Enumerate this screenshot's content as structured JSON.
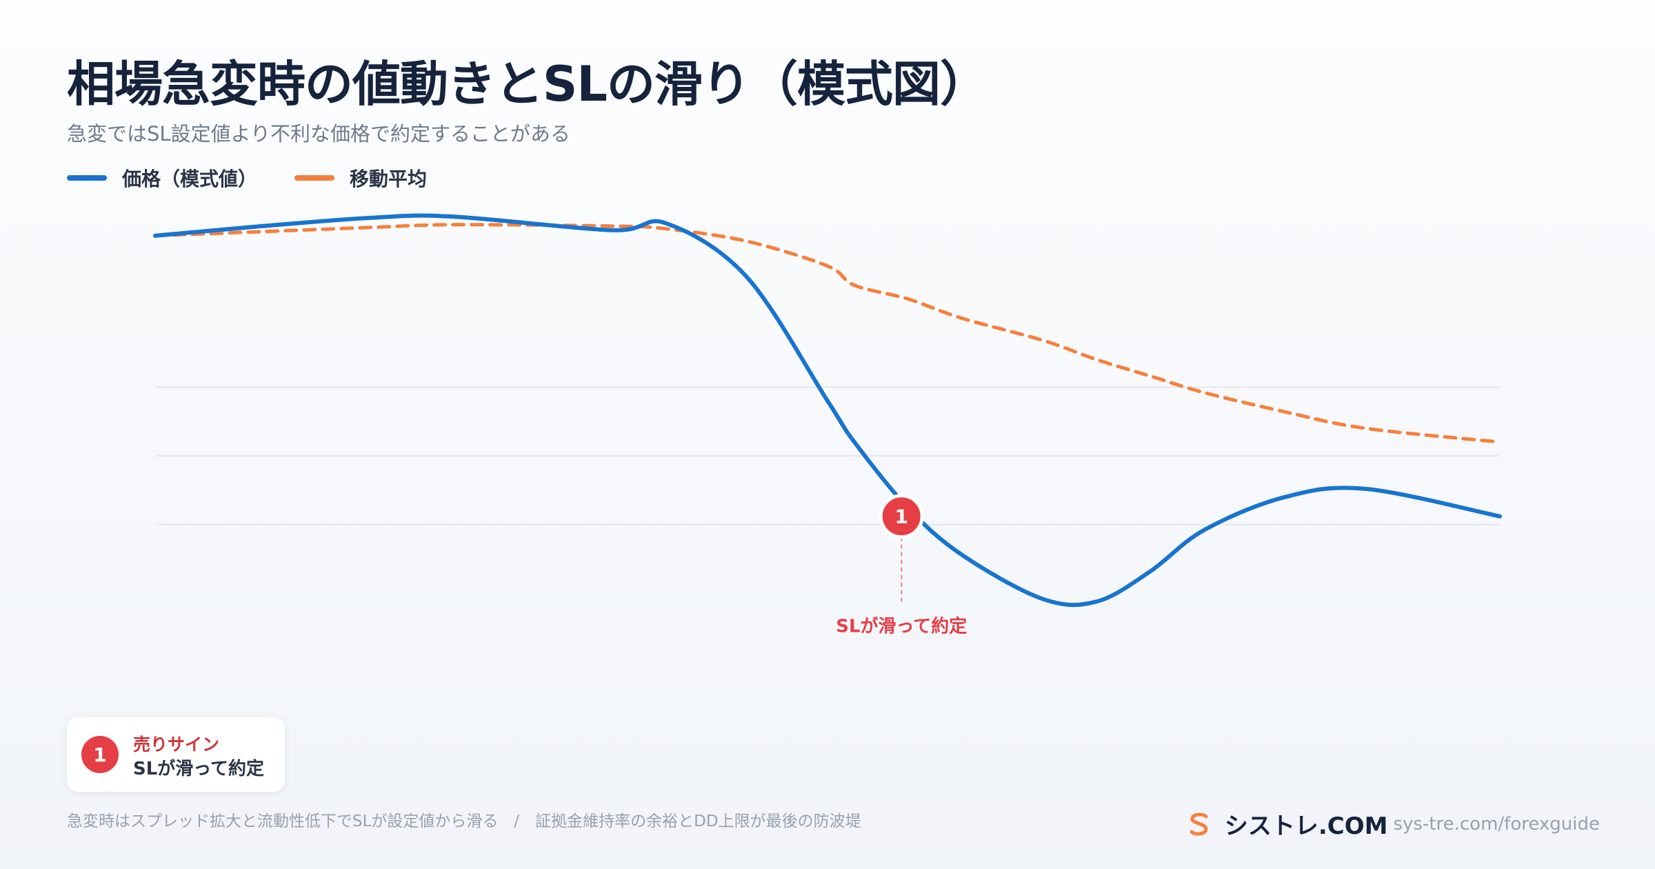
{
  "header": {
    "title": "相場急変時の値動きとSLの滑り（模式図）",
    "subtitle": "急変ではSL設定値より不利な価格で約定することがある"
  },
  "legend": [
    {
      "label": "価格（模式値）",
      "color": "#1874d0",
      "style": "solid"
    },
    {
      "label": "移動平均",
      "color": "#f5803c",
      "style": "dashed"
    }
  ],
  "chart_data": {
    "type": "line",
    "title": "相場急変時の値動きとSLの滑り（模式図）",
    "subtitle": "急変ではSL設定値より不利な価格で約定することがある",
    "xlabel": "",
    "ylabel": "",
    "grid": true,
    "x": [
      0,
      8,
      16,
      22,
      34,
      38,
      44,
      50,
      52,
      56,
      60,
      66,
      70,
      74,
      78,
      84,
      90,
      100
    ],
    "ylim": [
      70,
      107
    ],
    "series": [
      {
        "name": "価格（模式値）",
        "color": "#1874d0",
        "style": "solid",
        "values": [
          103,
          103.7,
          104.3,
          104.4,
          103.4,
          103.9,
          100.0,
          91.0,
          88.0,
          83.2,
          79.8,
          76.6,
          76.4,
          78.6,
          81.6,
          84.0,
          84.6,
          82.6
        ]
      },
      {
        "name": "移動平均",
        "color": "#f5803c",
        "style": "dashed",
        "values": [
          103,
          103.3,
          103.6,
          103.8,
          103.7,
          103.5,
          102.6,
          100.8,
          99.4,
          98.4,
          97.0,
          95.4,
          94.0,
          92.8,
          91.6,
          90.2,
          89.0,
          88.0
        ]
      }
    ],
    "annotations": [
      {
        "id": "1",
        "x": 55.5,
        "y": 82.6,
        "label": "SLが滑って約定",
        "color": "#e53e45"
      }
    ],
    "grid_values": [
      92,
      87,
      82
    ]
  },
  "note": {
    "badge": "1",
    "title": "売りサイン",
    "desc": "SLが滑って約定"
  },
  "footer": {
    "text": "急変時はスプレッド拡大と流動性低下でSLが設定値から滑る　/　証拠金維持率の余裕とDD上限が最後の防波堤"
  },
  "brand": {
    "name": "シストレ.COM",
    "url": "sys-tre.com/forexguide",
    "accent": "#f5803c"
  }
}
